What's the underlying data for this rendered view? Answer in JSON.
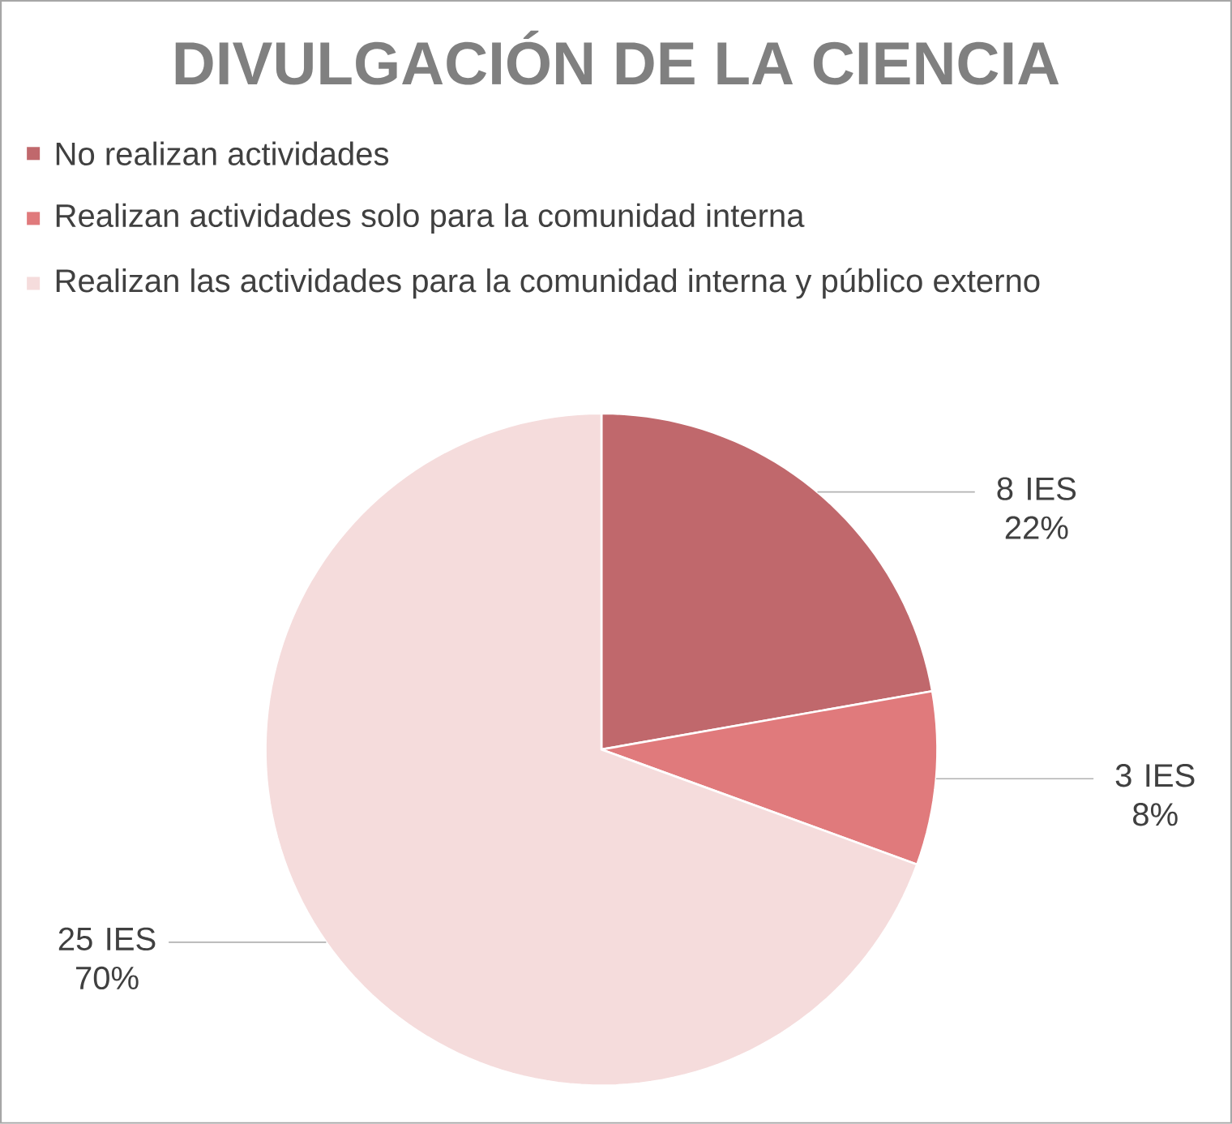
{
  "chart_data": {
    "type": "pie",
    "title": "DIVULGACIÓN DE LA CIENCIA",
    "categories": [
      "No realizan actividades",
      "Realizan actividades solo para la comunidad interna",
      "Realizan las actividades para la comunidad interna y público externo"
    ],
    "values": [
      8,
      3,
      25
    ],
    "colors": [
      "#c0686c",
      "#e07a7c",
      "#f5dcdc"
    ],
    "value_labels": [
      "8 IES 22%",
      "3 IES 8%",
      "25 IES 70%"
    ],
    "legend": "top"
  }
}
